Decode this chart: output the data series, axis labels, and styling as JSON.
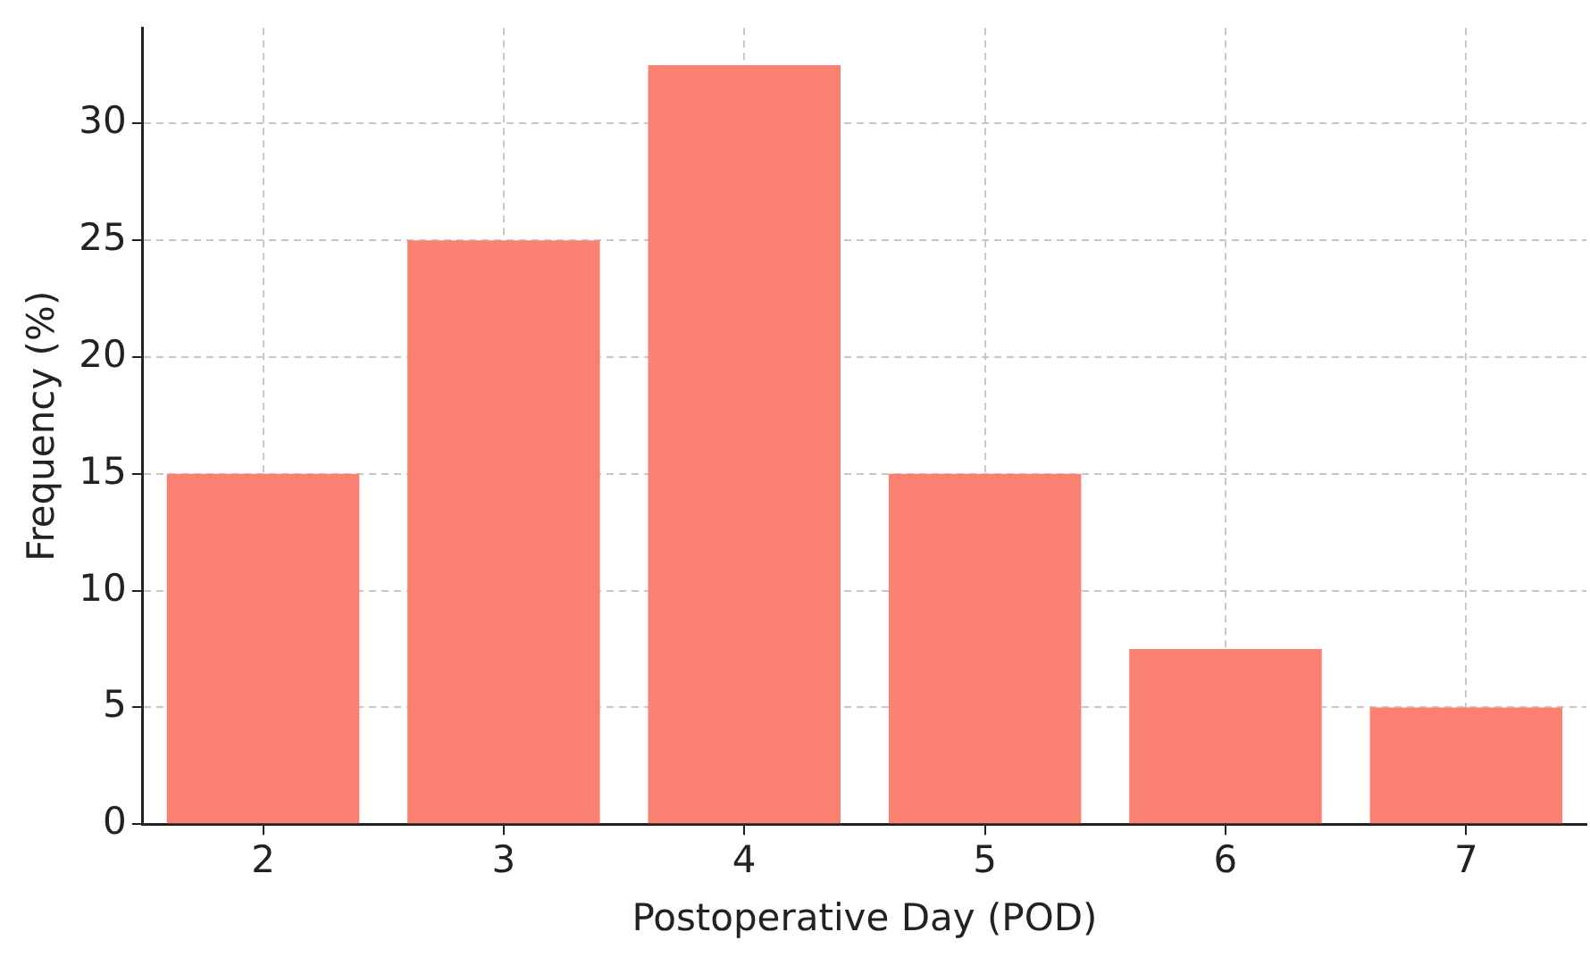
{
  "chart_data": {
    "type": "bar",
    "xlabel": "Postoperative Day (POD)",
    "ylabel": "Frequency (%)",
    "categories": [
      "2",
      "3",
      "4",
      "5",
      "6",
      "7"
    ],
    "values": [
      15,
      25,
      32.5,
      15,
      7.5,
      5
    ],
    "color": "#fa8072",
    "ylim": [
      0,
      34.1
    ],
    "yticks": [
      0,
      5,
      10,
      15,
      20,
      25,
      30
    ],
    "grid": true
  }
}
